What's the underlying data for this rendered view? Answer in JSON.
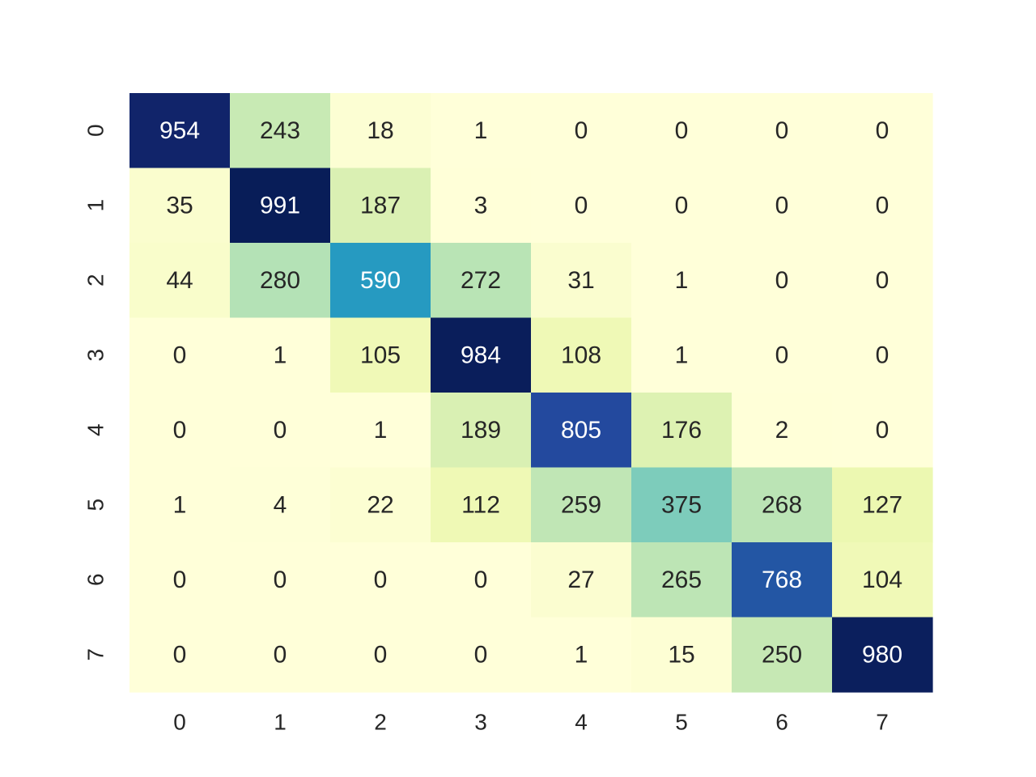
{
  "chart_data": {
    "type": "heatmap",
    "title": "",
    "xlabel": "",
    "ylabel": "",
    "x_categories": [
      "0",
      "1",
      "2",
      "3",
      "4",
      "5",
      "6",
      "7"
    ],
    "y_categories": [
      "0",
      "1",
      "2",
      "3",
      "4",
      "5",
      "6",
      "7"
    ],
    "values": [
      [
        954,
        243,
        18,
        1,
        0,
        0,
        0,
        0
      ],
      [
        35,
        991,
        187,
        3,
        0,
        0,
        0,
        0
      ],
      [
        44,
        280,
        590,
        272,
        31,
        1,
        0,
        0
      ],
      [
        0,
        1,
        105,
        984,
        108,
        1,
        0,
        0
      ],
      [
        0,
        0,
        1,
        189,
        805,
        176,
        2,
        0
      ],
      [
        1,
        4,
        22,
        112,
        259,
        375,
        268,
        127
      ],
      [
        0,
        0,
        0,
        0,
        27,
        265,
        768,
        104
      ],
      [
        0,
        0,
        0,
        0,
        1,
        15,
        250,
        980
      ]
    ],
    "colormap": "YlGnBu",
    "value_range": [
      0,
      991
    ],
    "annotations": true,
    "colorbar": false,
    "grid": false
  }
}
